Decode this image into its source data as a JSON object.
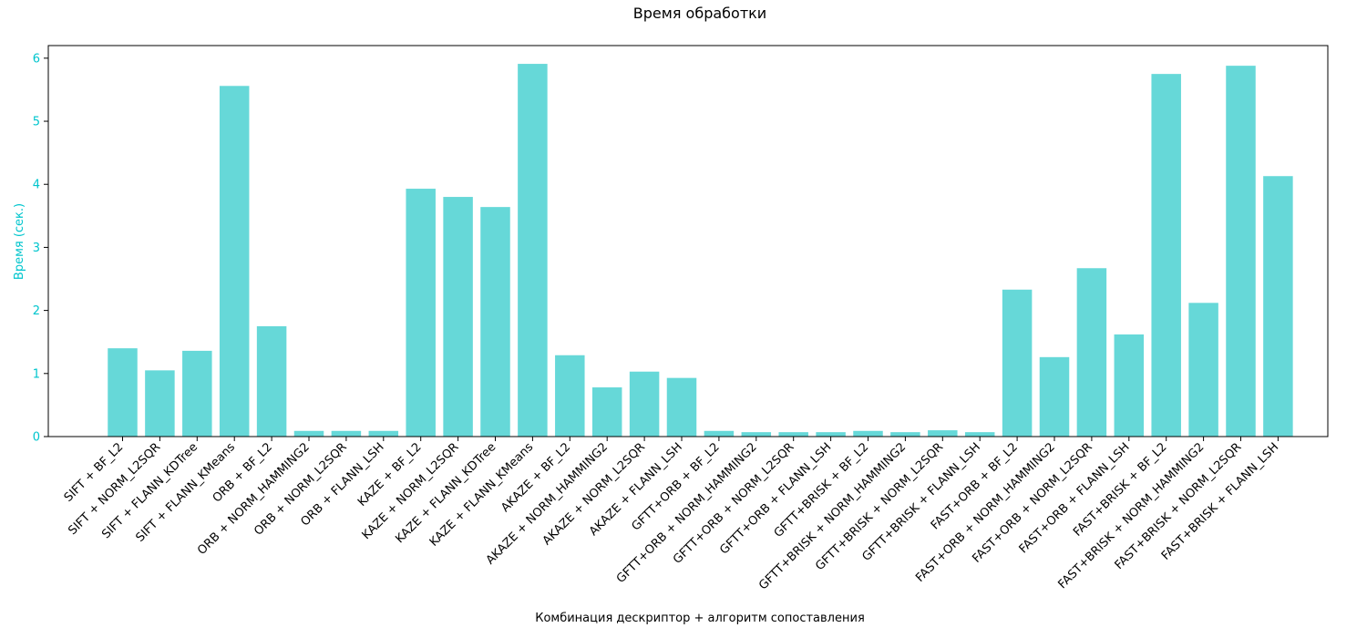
{
  "chart_data": {
    "type": "bar",
    "title": "Время обработки",
    "xlabel": "Комбинация дескриптор + алгоритм сопоставления",
    "ylabel": "Время (сек.)",
    "ylim": [
      0,
      6.2
    ],
    "yticks": [
      0,
      1,
      2,
      3,
      4,
      5,
      6
    ],
    "grid": false,
    "colors": {
      "bar": "#66d8d8",
      "ytick": "#00c5cd",
      "axis": "#000000"
    },
    "categories": [
      "SIFT + BF_L2",
      "SIFT + NORM_L2SQR",
      "SIFT + FLANN_KDTree",
      "SIFT + FLANN_KMeans",
      "ORB + BF_L2",
      "ORB + NORM_HAMMING2",
      "ORB + NORM_L2SQR",
      "ORB + FLANN_LSH",
      "KAZE + BF_L2",
      "KAZE + NORM_L2SQR",
      "KAZE + FLANN_KDTree",
      "KAZE + FLANN_KMeans",
      "AKAZE + BF_L2",
      "AKAZE + NORM_HAMMING2",
      "AKAZE + NORM_L2SQR",
      "AKAZE + FLANN_LSH",
      "GFTT+ORB + BF_L2",
      "GFTT+ORB + NORM_HAMMING2",
      "GFTT+ORB + NORM_L2SQR",
      "GFTT+ORB + FLANN_LSH",
      "GFTT+BRISK + BF_L2",
      "GFTT+BRISK + NORM_HAMMING2",
      "GFTT+BRISK + NORM_L2SQR",
      "GFTT+BRISK + FLANN_LSH",
      "FAST+ORB + BF_L2",
      "FAST+ORB + NORM_HAMMING2",
      "FAST+ORB + NORM_L2SQR",
      "FAST+ORB + FLANN_LSH",
      "FAST+BRISK + BF_L2",
      "FAST+BRISK + NORM_HAMMING2",
      "FAST+BRISK + NORM_L2SQR",
      "FAST+BRISK + FLANN_LSH"
    ],
    "values": [
      1.4,
      1.05,
      1.36,
      5.56,
      1.75,
      0.09,
      0.09,
      0.09,
      3.93,
      3.8,
      3.64,
      5.91,
      1.29,
      0.78,
      1.03,
      0.93,
      0.09,
      0.07,
      0.07,
      0.07,
      0.09,
      0.07,
      0.1,
      0.07,
      2.33,
      1.26,
      2.67,
      1.62,
      5.75,
      2.12,
      5.88,
      4.13
    ]
  }
}
